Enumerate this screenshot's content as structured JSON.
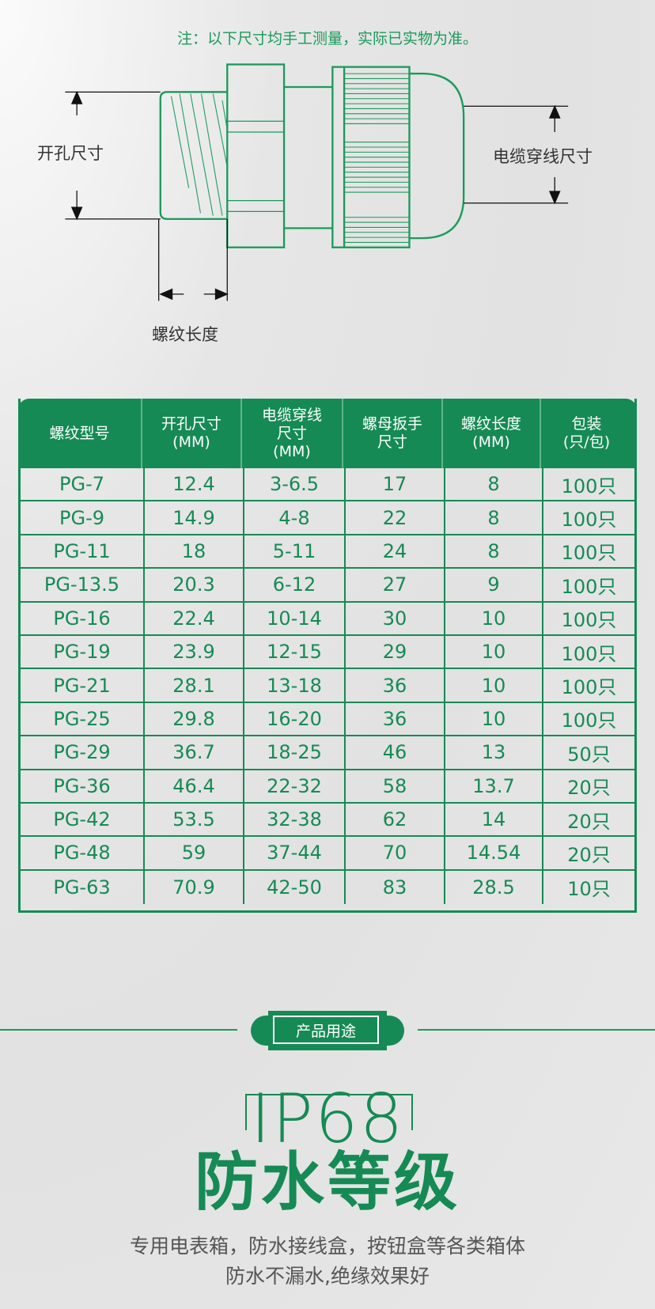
{
  "note": "注：以下尺寸均手工测量，实际已实物为准。",
  "diagram": {
    "hole_label": "开孔尺寸",
    "cable_label": "电缆穿线尺寸",
    "thread_length_label": "螺纹长度"
  },
  "table": {
    "headers": [
      "螺纹型号",
      "开孔尺寸\n(MM)",
      "电缆穿线\n尺寸\n(MM)",
      "螺母扳手\n尺寸",
      "螺纹长度\n(MM)",
      "包装\n(只/包)"
    ],
    "rows": [
      [
        "PG-7",
        "12.4",
        "3-6.5",
        "17",
        "8",
        "100只"
      ],
      [
        "PG-9",
        "14.9",
        "4-8",
        "22",
        "8",
        "100只"
      ],
      [
        "PG-11",
        "18",
        "5-11",
        "24",
        "8",
        "100只"
      ],
      [
        "PG-13.5",
        "20.3",
        "6-12",
        "27",
        "9",
        "100只"
      ],
      [
        "PG-16",
        "22.4",
        "10-14",
        "30",
        "10",
        "100只"
      ],
      [
        "PG-19",
        "23.9",
        "12-15",
        "29",
        "10",
        "100只"
      ],
      [
        "PG-21",
        "28.1",
        "13-18",
        "36",
        "10",
        "100只"
      ],
      [
        "PG-25",
        "29.8",
        "16-20",
        "36",
        "10",
        "100只"
      ],
      [
        "PG-29",
        "36.7",
        "18-25",
        "46",
        "13",
        "50只"
      ],
      [
        "PG-36",
        "46.4",
        "22-32",
        "58",
        "13.7",
        "20只"
      ],
      [
        "PG-42",
        "53.5",
        "32-38",
        "62",
        "14",
        "20只"
      ],
      [
        "PG-48",
        "59",
        "37-44",
        "70",
        "14.54",
        "20只"
      ],
      [
        "PG-63",
        "70.9",
        "42-50",
        "83",
        "28.5",
        "10只"
      ]
    ]
  },
  "section": {
    "badge": "产品用途",
    "rating": "IP68",
    "title": "防水等级",
    "desc_line1": "专用电表箱，防水接线盒，按钮盒等各类箱体",
    "desc_line2": "防水不漏水,绝缘效果好"
  },
  "colors": {
    "accent": "#168a55",
    "text_green": "#1a9a5c",
    "text_gray": "#555555"
  }
}
